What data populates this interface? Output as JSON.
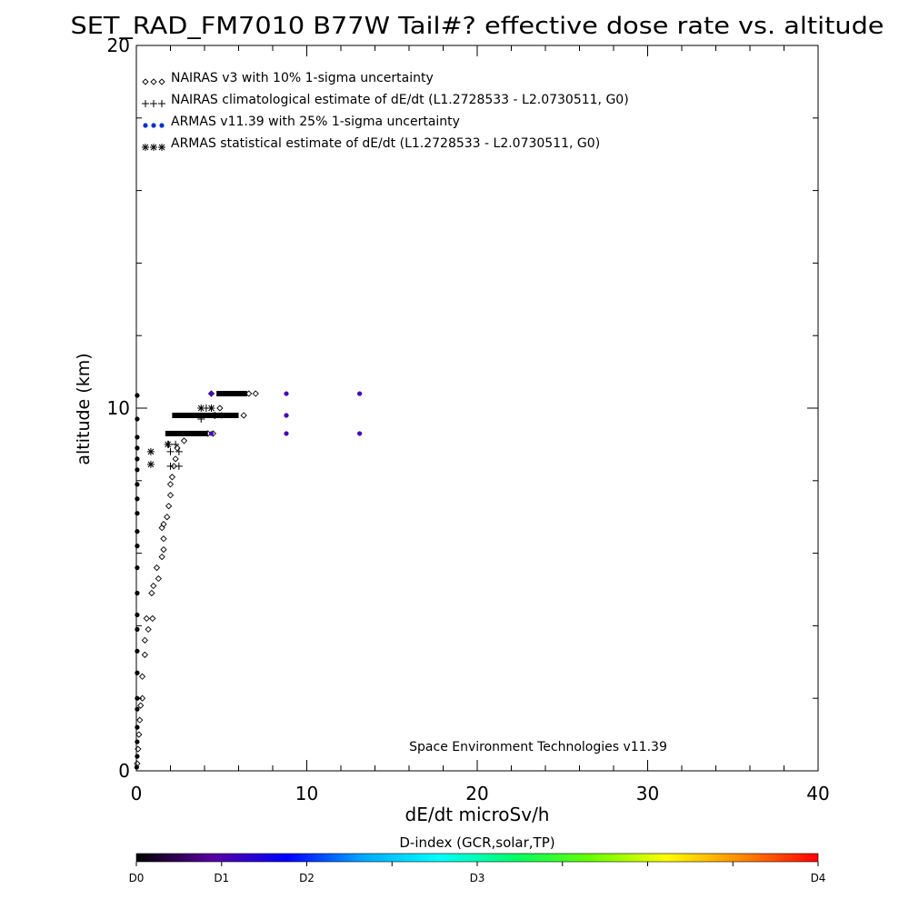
{
  "chart_data": {
    "type": "scatter",
    "title": "SET_RAD_FM7010  B77W Tail#? effective dose rate vs. altitude",
    "xlabel": "dE/dt microSv/h",
    "ylabel": "altitude (km)",
    "xlim": [
      0,
      40
    ],
    "ylim": [
      0,
      20
    ],
    "x_tick_labels": [
      "0",
      "10",
      "20",
      "30",
      "40"
    ],
    "y_tick_labels": [
      "0",
      "10",
      "20"
    ],
    "grid": false,
    "legend_placement": "top-left",
    "legend": [
      {
        "symbol": "◇◇◇",
        "label": "NAIRAS v3 with 10% 1-sigma uncertainty"
      },
      {
        "symbol": "+++",
        "label": "NAIRAS climatological estimate of dE/dt (L1.2728533 - L2.0730511, G0)"
      },
      {
        "symbol": "●●●",
        "label": "ARMAS v11.39 with 25% 1-sigma uncertainty"
      },
      {
        "symbol": "***",
        "label": "ARMAS statistical estimate of dE/dt (L1.2728533 - L2.0730511, G0)"
      }
    ],
    "annotation": "Space Environment Technologies v11.39",
    "colorbar": {
      "title": "D-index (GCR,solar,TP)",
      "labels": [
        {
          "text": "D0",
          "pos": 0.0
        },
        {
          "text": "D1",
          "pos": 0.125
        },
        {
          "text": "D2",
          "pos": 0.25
        },
        {
          "text": "D3",
          "pos": 0.5
        },
        {
          "text": "D4",
          "pos": 1.0
        }
      ],
      "stops": [
        "#000000",
        "#5a00a0",
        "#0000ff",
        "#00aaff",
        "#00ffff",
        "#00ff66",
        "#66ff00",
        "#ffff00",
        "#ff8800",
        "#ff0000"
      ]
    },
    "series": [
      {
        "name": "NAIRAS v3 with 10% 1-sigma uncertainty",
        "marker": "diamond",
        "points": [
          [
            0.05,
            0.2
          ],
          [
            0.1,
            0.6
          ],
          [
            0.15,
            1.0
          ],
          [
            0.2,
            1.4
          ],
          [
            0.25,
            1.8
          ],
          [
            0.35,
            2.0
          ],
          [
            0.35,
            2.6
          ],
          [
            0.5,
            3.2
          ],
          [
            0.5,
            3.6
          ],
          [
            0.7,
            3.9
          ],
          [
            0.6,
            4.2
          ],
          [
            0.95,
            4.2
          ],
          [
            0.9,
            4.9
          ],
          [
            1.0,
            5.1
          ],
          [
            1.2,
            5.6
          ],
          [
            1.3,
            5.3
          ],
          [
            1.5,
            5.9
          ],
          [
            1.6,
            6.1
          ],
          [
            1.6,
            6.4
          ],
          [
            1.5,
            6.7
          ],
          [
            1.6,
            6.8
          ],
          [
            1.8,
            7.0
          ],
          [
            1.9,
            7.3
          ],
          [
            2.0,
            7.6
          ],
          [
            2.0,
            7.9
          ],
          [
            2.1,
            8.1
          ],
          [
            2.2,
            8.4
          ],
          [
            2.3,
            8.6
          ],
          [
            2.4,
            8.9
          ],
          [
            2.8,
            9.1
          ],
          [
            4.2,
            9.3
          ],
          [
            4.5,
            9.3
          ],
          [
            5.0,
            9.8
          ],
          [
            6.3,
            9.8
          ],
          [
            6.6,
            10.4
          ],
          [
            7.0,
            10.4
          ],
          [
            4.9,
            10.0
          ],
          [
            4.4,
            10.4
          ]
        ]
      },
      {
        "name": "NAIRAS climatological estimate of dE/dt (L1.2728533 - L2.0730511, G0)",
        "marker": "plus",
        "points": [
          [
            2.0,
            8.4
          ],
          [
            2.5,
            8.4
          ],
          [
            2.0,
            8.8
          ],
          [
            2.5,
            8.8
          ],
          [
            1.9,
            9.0
          ],
          [
            2.3,
            9.0
          ],
          [
            4.1,
            10.0
          ],
          [
            4.6,
            9.8
          ],
          [
            3.8,
            9.7
          ]
        ]
      },
      {
        "name": "ARMAS v11.39 with 25% 1-sigma uncertainty",
        "marker": "dot",
        "points": [
          [
            0.02,
            0.1
          ],
          [
            0.05,
            0.4
          ],
          [
            0.05,
            0.8
          ],
          [
            0.05,
            1.2
          ],
          [
            0.05,
            1.7
          ],
          [
            0.05,
            2.0
          ],
          [
            0.05,
            2.7
          ],
          [
            0.05,
            3.3
          ],
          [
            0.05,
            3.9
          ],
          [
            0.05,
            4.3
          ],
          [
            0.05,
            4.9
          ],
          [
            0.05,
            5.6
          ],
          [
            0.05,
            6.2
          ],
          [
            0.05,
            6.6
          ],
          [
            0.05,
            7.1
          ],
          [
            0.05,
            7.5
          ],
          [
            0.05,
            7.9
          ],
          [
            0.05,
            8.3
          ],
          [
            0.05,
            8.6
          ],
          [
            0.05,
            8.9
          ],
          [
            0.05,
            9.2
          ],
          [
            0.05,
            9.7
          ],
          [
            0.05,
            10.35
          ],
          [
            8.8,
            9.3
          ],
          [
            13.1,
            9.3
          ],
          [
            8.8,
            9.8
          ],
          [
            4.4,
            9.3
          ],
          [
            4.4,
            10.4
          ],
          [
            8.8,
            10.4
          ],
          [
            13.1,
            10.4
          ]
        ]
      },
      {
        "name": "ARMAS statistical estimate of dE/dt (L1.2728533 - L2.0730511, G0)",
        "marker": "asterisk",
        "points": [
          [
            0.85,
            8.45
          ],
          [
            0.85,
            8.8
          ],
          [
            1.85,
            9.0
          ],
          [
            3.8,
            10.0
          ],
          [
            4.4,
            10.0
          ]
        ]
      }
    ],
    "bands": [
      {
        "x0": 1.7,
        "x1": 4.2,
        "y": 9.3,
        "color": "#000000"
      },
      {
        "x0": 2.1,
        "x1": 6.0,
        "y": 9.8,
        "color": "#000000"
      },
      {
        "x0": 4.7,
        "x1": 6.5,
        "y": 10.4,
        "color": "#000000"
      }
    ]
  }
}
